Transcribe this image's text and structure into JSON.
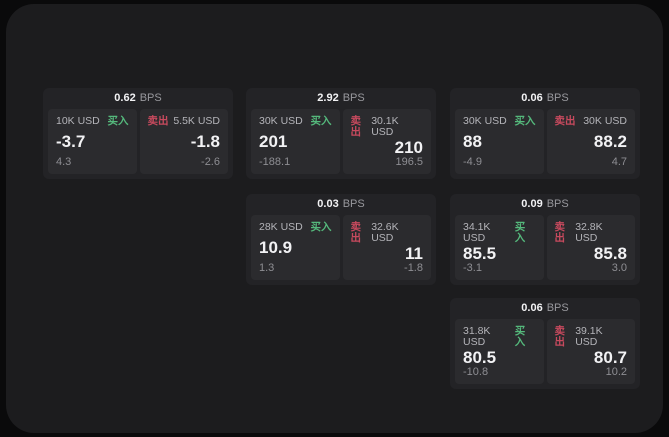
{
  "colors": {
    "page_bg": "#0a0a0b",
    "panel_bg": "#1c1c1e",
    "card_bg": "#232326",
    "subpanel_bg": "#2b2b2e",
    "buy_green": "#55b97c",
    "sell_red": "#c84a5e",
    "text_primary": "#f2f2f4",
    "text_secondary": "#98989d",
    "text_label": "#b4b4b9",
    "text_muted": "#8e8e93"
  },
  "labels": {
    "bps_unit": "BPS",
    "buy": "买入",
    "sell": "卖出"
  },
  "cards": [
    {
      "row": 1,
      "col": 1,
      "bps": "0.62",
      "buy": {
        "size": "10K USD",
        "price": "-3.7",
        "delta": "4.3"
      },
      "sell": {
        "size": "5.5K USD",
        "price": "-1.8",
        "delta": "-2.6"
      }
    },
    {
      "row": 1,
      "col": 2,
      "bps": "2.92",
      "buy": {
        "size": "30K USD",
        "price": "201",
        "delta": "-188.1"
      },
      "sell": {
        "size": "30.1K USD",
        "price": "210",
        "delta": "196.5"
      }
    },
    {
      "row": 1,
      "col": 3,
      "bps": "0.06",
      "buy": {
        "size": "30K USD",
        "price": "88",
        "delta": "-4.9"
      },
      "sell": {
        "size": "30K USD",
        "price": "88.2",
        "delta": "4.7"
      }
    },
    {
      "row": 2,
      "col": 2,
      "bps": "0.03",
      "buy": {
        "size": "28K USD",
        "price": "10.9",
        "delta": "1.3"
      },
      "sell": {
        "size": "32.6K USD",
        "price": "11",
        "delta": "-1.8"
      }
    },
    {
      "row": 2,
      "col": 3,
      "bps": "0.09",
      "buy": {
        "size": "34.1K USD",
        "price": "85.5",
        "delta": "-3.1"
      },
      "sell": {
        "size": "32.8K USD",
        "price": "85.8",
        "delta": "3.0"
      }
    },
    {
      "row": 3,
      "col": 3,
      "bps": "0.06",
      "buy": {
        "size": "31.8K USD",
        "price": "80.5",
        "delta": "-10.8"
      },
      "sell": {
        "size": "39.1K USD",
        "price": "80.7",
        "delta": "10.2"
      }
    }
  ]
}
